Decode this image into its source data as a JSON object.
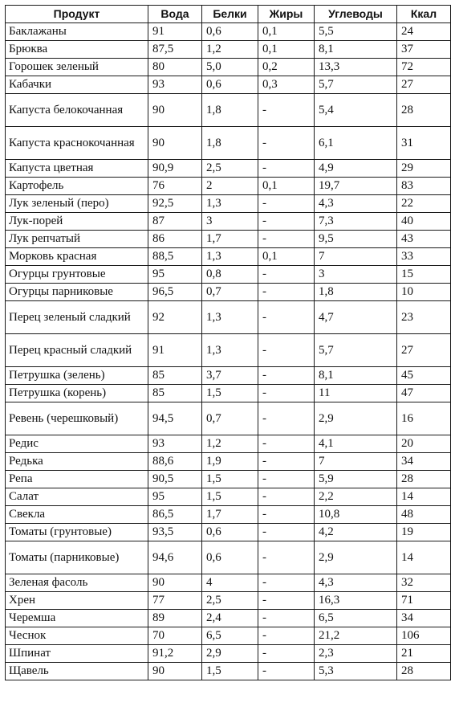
{
  "table": {
    "headers": [
      "Продукт",
      "Вода",
      "Белки",
      "Жиры",
      "Углеводы",
      "Ккал"
    ],
    "rows": [
      [
        "Баклажаны",
        "91",
        "0,6",
        "0,1",
        "5,5",
        "24"
      ],
      [
        "Брюква",
        "87,5",
        "1,2",
        "0,1",
        "8,1",
        "37"
      ],
      [
        "Горошек зеленый",
        "80",
        "5,0",
        "0,2",
        "13,3",
        "72"
      ],
      [
        "Кабачки",
        "93",
        "0,6",
        "0,3",
        "5,7",
        "27"
      ],
      [
        "Капуста белокочанная",
        "90",
        "1,8",
        "-",
        "5,4",
        "28"
      ],
      [
        "Капуста краснокочанная",
        "90",
        "1,8",
        "-",
        "6,1",
        "31"
      ],
      [
        "Капуста цветная",
        "90,9",
        "2,5",
        "-",
        "4,9",
        "29"
      ],
      [
        "Картофель",
        "76",
        "2",
        "0,1",
        "19,7",
        "83"
      ],
      [
        "Лук зеленый (перо)",
        "92,5",
        "1,3",
        "-",
        "4,3",
        "22"
      ],
      [
        "Лук-порей",
        "87",
        "3",
        "-",
        "7,3",
        "40"
      ],
      [
        "Лук репчатый",
        "86",
        "1,7",
        "-",
        "9,5",
        "43"
      ],
      [
        "Морковь красная",
        "88,5",
        "1,3",
        "0,1",
        "7",
        "33"
      ],
      [
        "Огурцы грунтовые",
        "95",
        "0,8",
        "-",
        "3",
        "15"
      ],
      [
        "Огурцы парниковые",
        "96,5",
        "0,7",
        "-",
        "1,8",
        "10"
      ],
      [
        "Перец зеленый сладкий",
        "92",
        "1,3",
        "-",
        "4,7",
        "23"
      ],
      [
        "Перец красный сладкий",
        "91",
        "1,3",
        "-",
        "5,7",
        "27"
      ],
      [
        "Петрушка (зелень)",
        "85",
        "3,7",
        "-",
        "8,1",
        "45"
      ],
      [
        "Петрушка (корень)",
        "85",
        "1,5",
        "-",
        "11",
        "47"
      ],
      [
        "Ревень (черешковый)",
        "94,5",
        "0,7",
        "-",
        "2,9",
        "16"
      ],
      [
        "Редис",
        "93",
        "1,2",
        "-",
        "4,1",
        "20"
      ],
      [
        "Редька",
        "88,6",
        "1,9",
        "-",
        "7",
        "34"
      ],
      [
        "Репа",
        "90,5",
        "1,5",
        "-",
        "5,9",
        "28"
      ],
      [
        "Салат",
        "95",
        "1,5",
        "-",
        "2,2",
        "14"
      ],
      [
        "Свекла",
        "86,5",
        "1,7",
        "-",
        "10,8",
        "48"
      ],
      [
        "Томаты (грунтовые)",
        "93,5",
        "0,6",
        "-",
        "4,2",
        "19"
      ],
      [
        "Томаты (парниковые)",
        "94,6",
        "0,6",
        "-",
        "2,9",
        "14"
      ],
      [
        "Зеленая фасоль",
        "90",
        "4",
        "-",
        "4,3",
        "32"
      ],
      [
        "Хрен",
        "77",
        "2,5",
        "-",
        "16,3",
        "71"
      ],
      [
        "Черемша",
        "89",
        "2,4",
        "-",
        "6,5",
        "34"
      ],
      [
        "Чеснок",
        "70",
        "6,5",
        "-",
        "21,2",
        "106"
      ],
      [
        "Шпинат",
        "91,2",
        "2,9",
        "-",
        "2,3",
        "21"
      ],
      [
        "Щавель",
        "90",
        "1,5",
        "-",
        "5,3",
        "28"
      ]
    ]
  }
}
